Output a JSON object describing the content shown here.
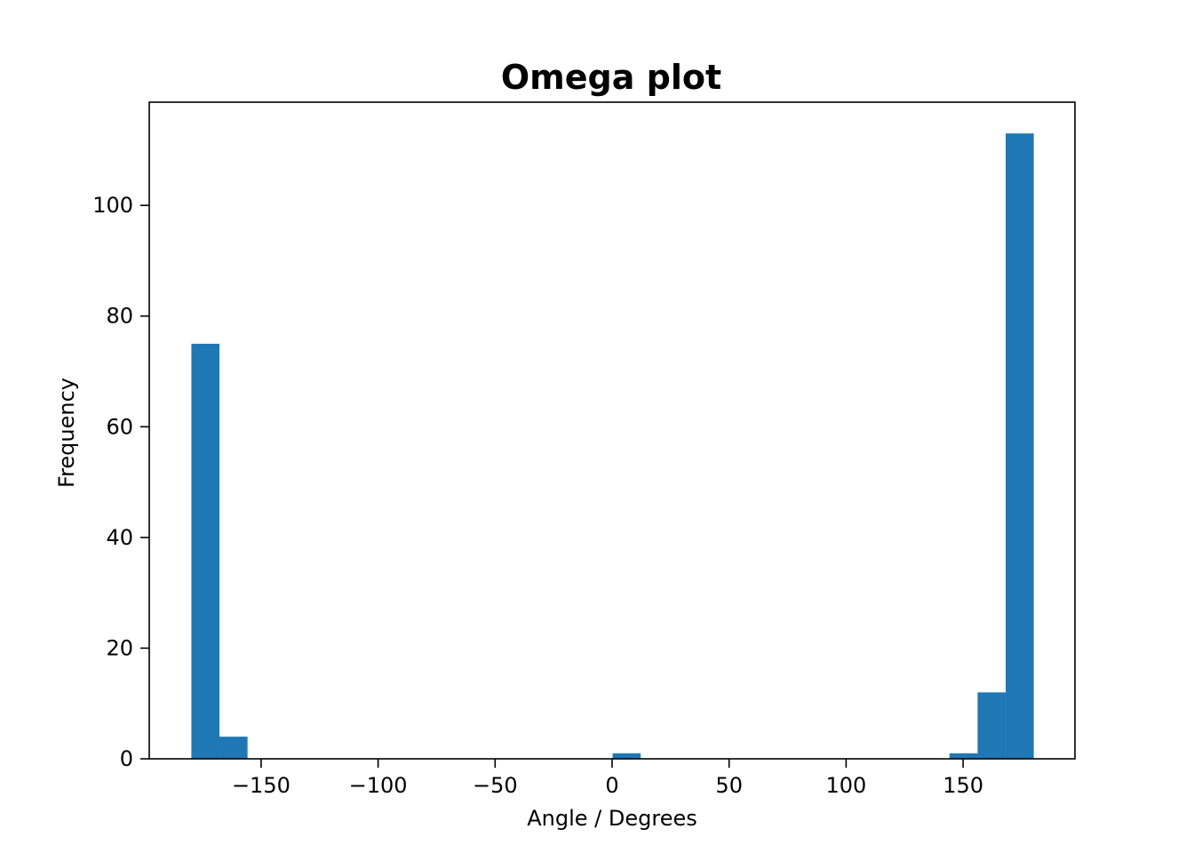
{
  "chart_data": {
    "type": "bar",
    "title": "Omega plot",
    "xlabel": "Angle / Degrees",
    "ylabel": "Frequency",
    "xlim": [
      -197.8,
      197.8
    ],
    "ylim": [
      0,
      118.65
    ],
    "grid": false,
    "bar_color": "#1f77b4",
    "bins": [
      {
        "x0": -179.8,
        "x1": -167.8,
        "count": 75
      },
      {
        "x0": -167.8,
        "x1": -155.8,
        "count": 4
      },
      {
        "x0": 0.2,
        "x1": 12.2,
        "count": 1
      },
      {
        "x0": 144.2,
        "x1": 156.2,
        "count": 1
      },
      {
        "x0": 156.2,
        "x1": 168.2,
        "count": 12
      },
      {
        "x0": 168.2,
        "x1": 180.2,
        "count": 113
      }
    ],
    "xticks": [
      {
        "value": -150,
        "label": "−150"
      },
      {
        "value": -100,
        "label": "−100"
      },
      {
        "value": -50,
        "label": "−50"
      },
      {
        "value": 0,
        "label": "0"
      },
      {
        "value": 50,
        "label": "50"
      },
      {
        "value": 100,
        "label": "100"
      },
      {
        "value": 150,
        "label": "150"
      }
    ],
    "yticks": [
      {
        "value": 0,
        "label": "0"
      },
      {
        "value": 20,
        "label": "20"
      },
      {
        "value": 40,
        "label": "40"
      },
      {
        "value": 60,
        "label": "60"
      },
      {
        "value": 80,
        "label": "80"
      },
      {
        "value": 100,
        "label": "100"
      }
    ]
  }
}
